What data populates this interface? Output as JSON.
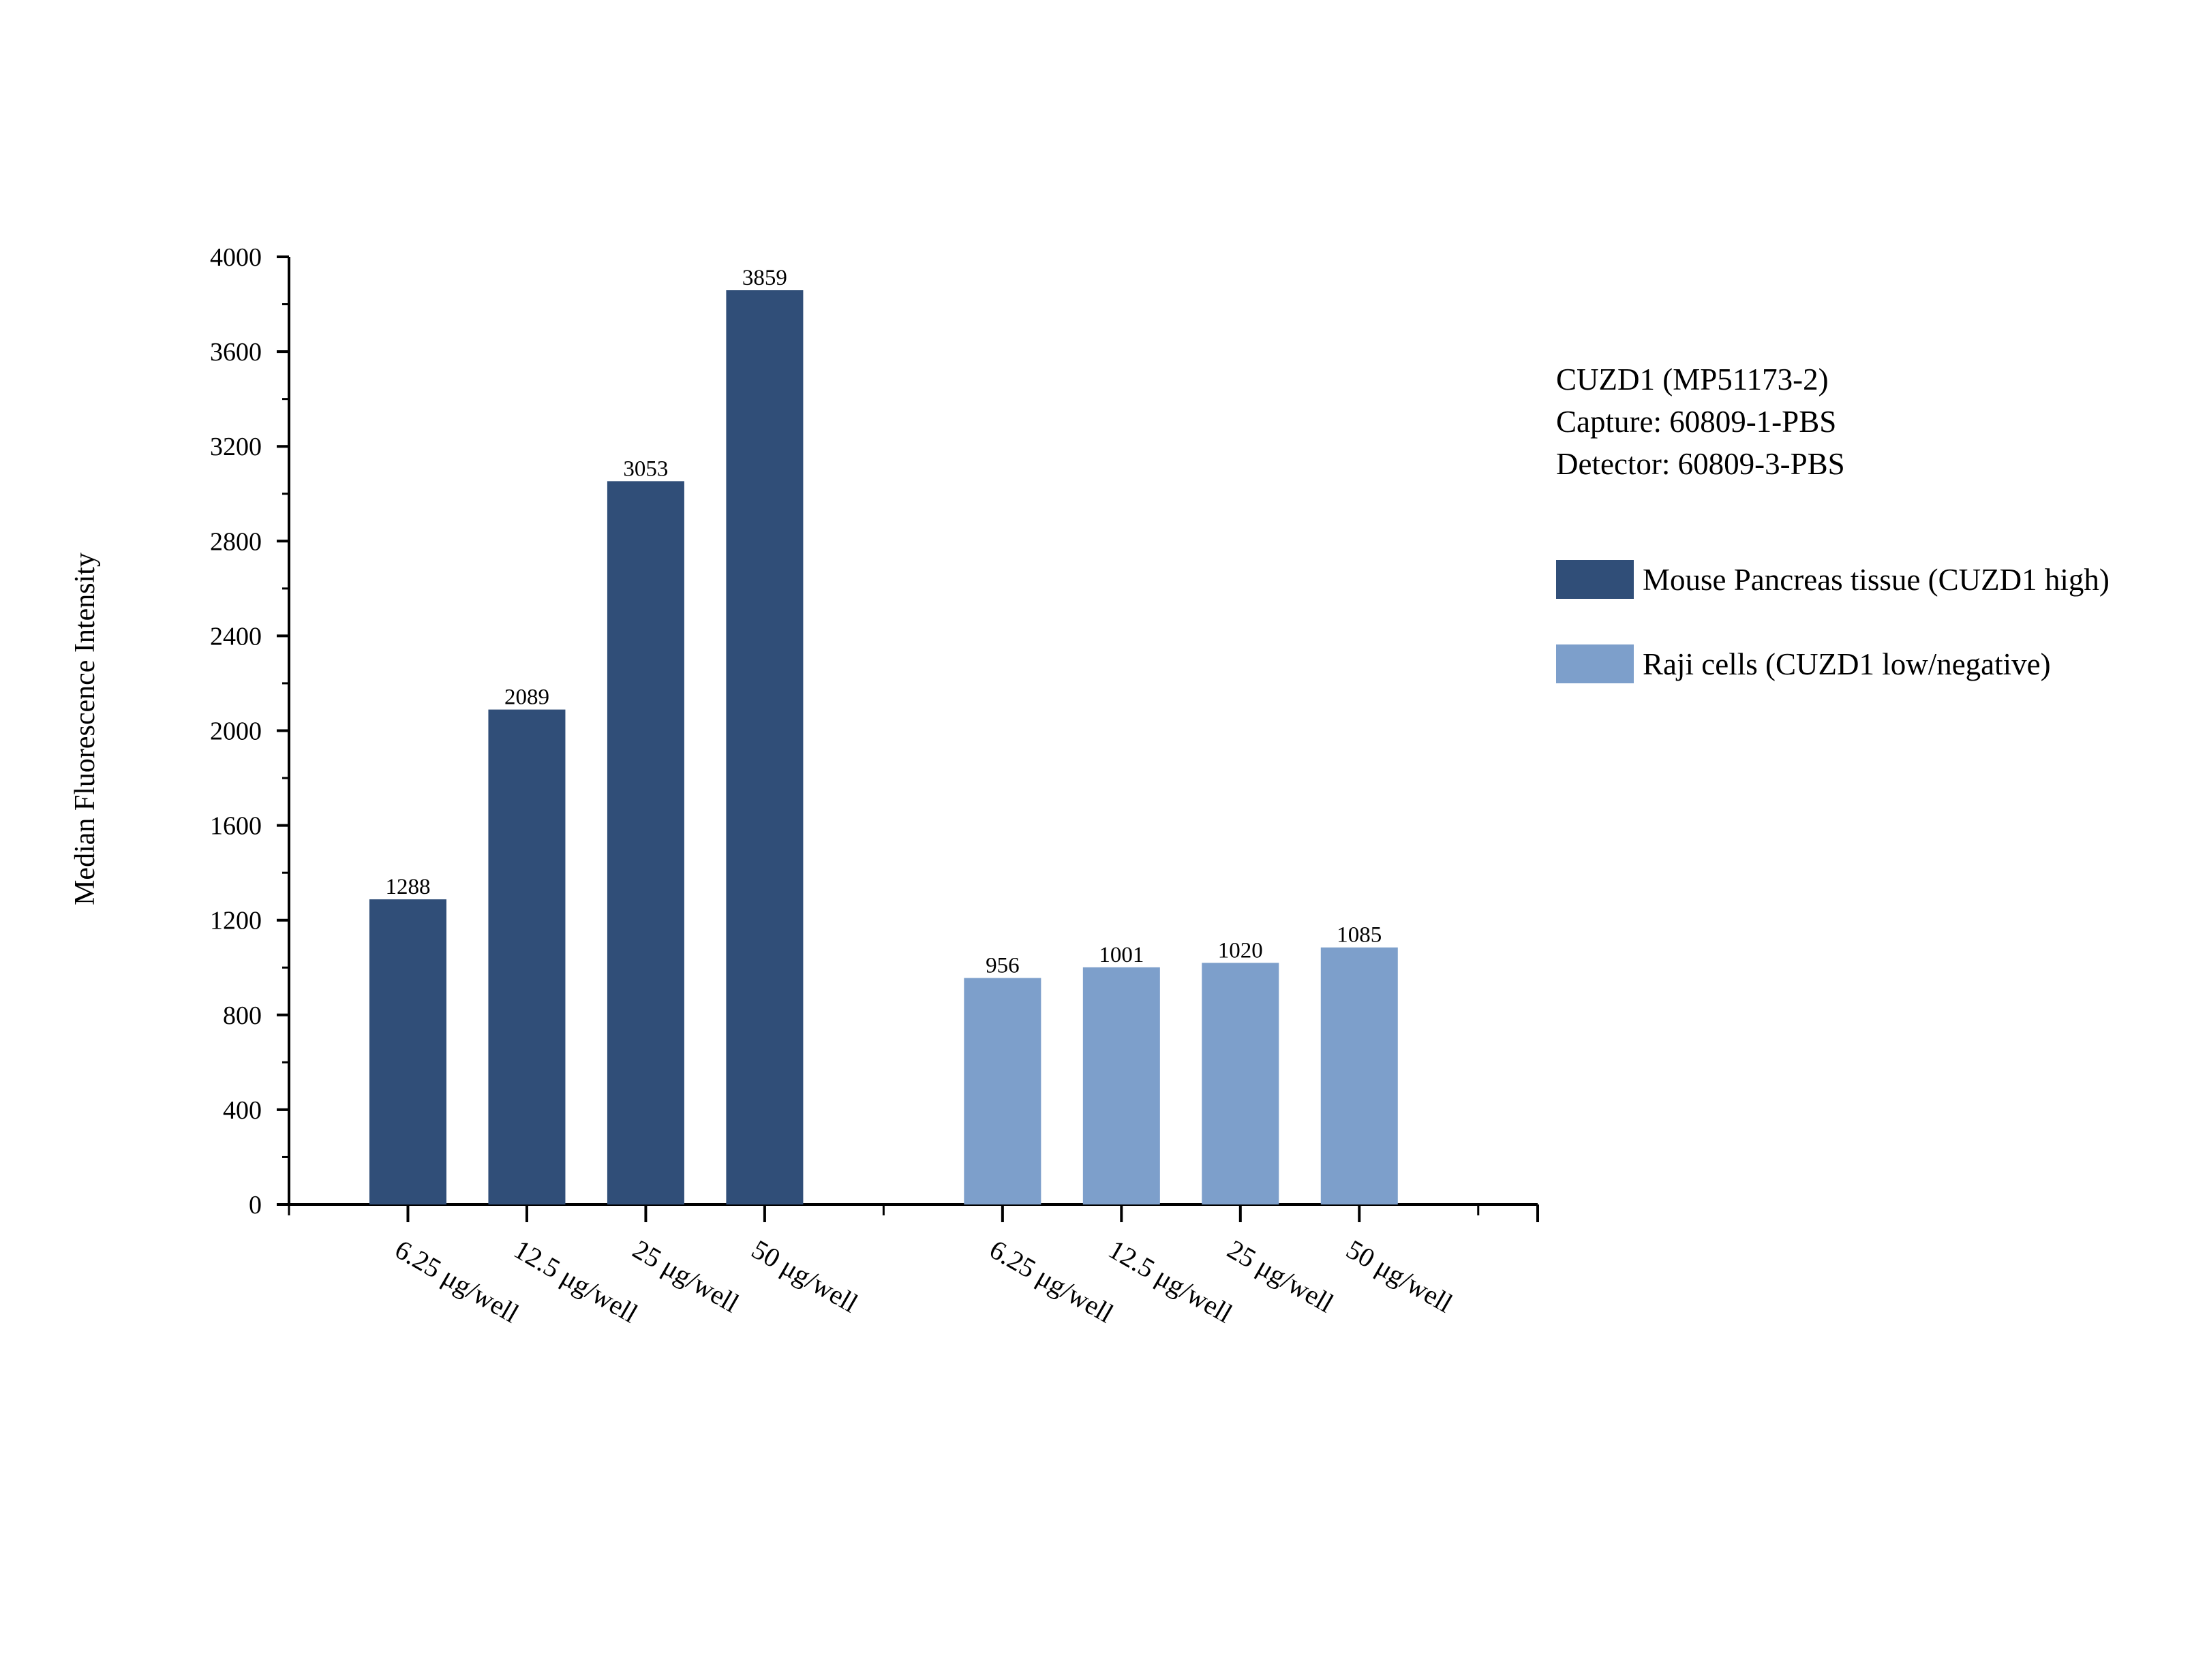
{
  "chart_data": {
    "type": "bar",
    "title": "",
    "xlabel": "",
    "ylabel": "Median Fluorescence Intensity",
    "ylim": [
      0,
      4000
    ],
    "yticks": [
      0,
      400,
      800,
      1200,
      1600,
      2000,
      2400,
      2800,
      3200,
      3600,
      4000
    ],
    "grid": false,
    "legend_position": "right",
    "info_lines": [
      "CUZD1 (MP51173-2)",
      "Capture: 60809-1-PBS",
      "Detector: 60809-3-PBS"
    ],
    "groups": [
      {
        "name": "Mouse Pancreas tissue (CUZD1 high)",
        "color": "#304e78",
        "categories": [
          "6.25 μg/well",
          "12.5 μg/well",
          "25 μg/well",
          "50 μg/well"
        ],
        "values": [
          1288,
          2089,
          3053,
          3859
        ],
        "labels": [
          "1288",
          "2089",
          "3053",
          "3859"
        ]
      },
      {
        "name": "Raji cells (CUZD1 low/negative)",
        "color": "#7d9fcb",
        "categories": [
          "6.25 μg/well",
          "12.5 μg/well",
          "25 μg/well",
          "50 μg/well"
        ],
        "values": [
          956,
          1001,
          1020,
          1085
        ],
        "labels": [
          "956",
          "1001",
          "1020",
          "1085"
        ]
      }
    ]
  }
}
